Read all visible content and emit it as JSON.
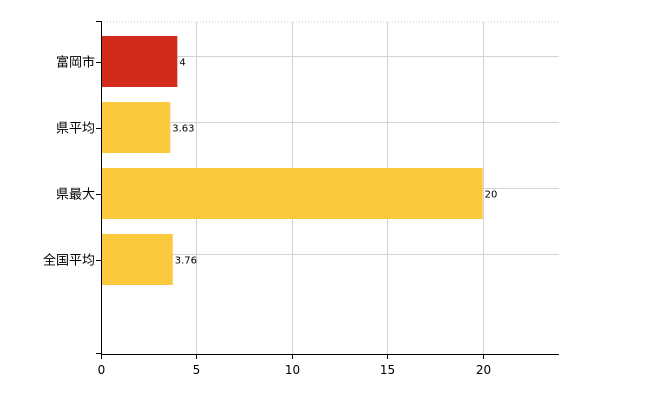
{
  "chart_data": {
    "type": "bar",
    "orientation": "horizontal",
    "categories": [
      "富岡市",
      "県平均",
      "県最大",
      "全国平均"
    ],
    "values": [
      4,
      3.63,
      20,
      3.76
    ],
    "data_labels": [
      "4",
      "3.63",
      "20",
      "3.76"
    ],
    "bar_colors": [
      "#d42a1c",
      "#fbc93d",
      "#fbc93d",
      "#fbc93d"
    ],
    "xlim": [
      0,
      24
    ],
    "xticks": [
      0,
      5,
      10,
      15,
      20
    ],
    "xtick_labels": [
      "0",
      "5",
      "10",
      "15",
      "20"
    ],
    "grid": true,
    "title": "",
    "xlabel": "",
    "ylabel": ""
  }
}
